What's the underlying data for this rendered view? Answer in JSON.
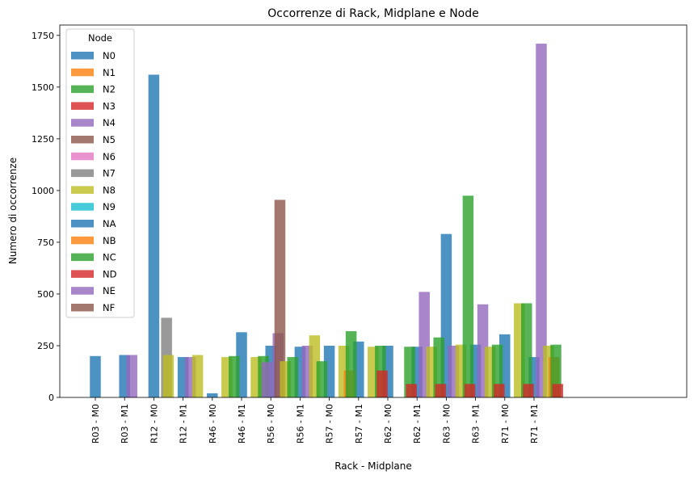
{
  "chart_data": {
    "type": "bar",
    "title": "Occorrenze di Rack, Midplane e Node",
    "xlabel": "Rack - Midplane",
    "ylabel": "Numero di occorrenze",
    "ylim": [
      0,
      1800
    ],
    "yticks": [
      0,
      250,
      500,
      750,
      1000,
      1250,
      1500,
      1750
    ],
    "grid": false,
    "legend": {
      "title": "Node",
      "position": "top-left"
    },
    "categories": [
      "R03 - M0",
      "R03 - M1",
      "R12 - M0",
      "R12 - M1",
      "R46 - M0",
      "R46 - M1",
      "R56 - M0",
      "R56 - M1",
      "R57 - M0",
      "R57 - M1",
      "R62 - M0",
      "R62 - M1",
      "R63 - M0",
      "R63 - M1",
      "R71 - M0",
      "R71 - M1"
    ],
    "series": [
      {
        "name": "N0",
        "color": "#1f77b4",
        "values": [
          200,
          205,
          1560,
          195,
          20,
          315,
          250,
          245,
          250,
          270,
          250,
          245,
          790,
          255,
          305,
          195
        ]
      },
      {
        "name": "N1",
        "color": "#ff7f0e",
        "values": [
          0,
          0,
          0,
          0,
          0,
          0,
          0,
          0,
          0,
          0,
          0,
          0,
          0,
          0,
          0,
          0
        ]
      },
      {
        "name": "N2",
        "color": "#2ca02c",
        "values": [
          0,
          0,
          0,
          0,
          0,
          0,
          0,
          0,
          0,
          0,
          0,
          0,
          0,
          0,
          0,
          0
        ]
      },
      {
        "name": "N3",
        "color": "#d62728",
        "values": [
          0,
          0,
          0,
          0,
          0,
          0,
          0,
          0,
          0,
          0,
          0,
          0,
          0,
          0,
          0,
          0
        ]
      },
      {
        "name": "N4",
        "color": "#9467bd",
        "values": [
          0,
          205,
          0,
          195,
          0,
          0,
          310,
          250,
          0,
          0,
          0,
          510,
          250,
          450,
          0,
          1710
        ]
      },
      {
        "name": "N5",
        "color": "#8c564b",
        "values": [
          0,
          0,
          0,
          0,
          0,
          0,
          955,
          0,
          0,
          0,
          0,
          0,
          0,
          0,
          0,
          0
        ]
      },
      {
        "name": "N6",
        "color": "#e377c2",
        "values": [
          0,
          0,
          0,
          0,
          0,
          0,
          0,
          0,
          0,
          0,
          0,
          0,
          0,
          0,
          0,
          0
        ]
      },
      {
        "name": "N7",
        "color": "#7f7f7f",
        "values": [
          0,
          0,
          385,
          0,
          0,
          0,
          0,
          0,
          0,
          0,
          0,
          0,
          0,
          0,
          0,
          0
        ]
      },
      {
        "name": "N8",
        "color": "#bcbd22",
        "values": [
          0,
          0,
          205,
          205,
          195,
          195,
          175,
          300,
          250,
          245,
          0,
          245,
          255,
          245,
          455,
          250
        ]
      },
      {
        "name": "N9",
        "color": "#17becf",
        "values": [
          0,
          0,
          0,
          0,
          0,
          0,
          0,
          0,
          0,
          0,
          0,
          0,
          0,
          0,
          0,
          0
        ]
      },
      {
        "name": "NA",
        "color": "#1f77b4",
        "values": [
          0,
          0,
          0,
          0,
          0,
          0,
          0,
          0,
          0,
          0,
          0,
          0,
          0,
          0,
          0,
          0
        ]
      },
      {
        "name": "NB",
        "color": "#ff7f0e",
        "values": [
          0,
          0,
          0,
          0,
          0,
          0,
          0,
          0,
          130,
          0,
          0,
          0,
          0,
          0,
          0,
          195
        ]
      },
      {
        "name": "NC",
        "color": "#2ca02c",
        "values": [
          0,
          0,
          0,
          0,
          200,
          200,
          195,
          175,
          320,
          250,
          245,
          290,
          975,
          255,
          455,
          255
        ]
      },
      {
        "name": "ND",
        "color": "#d62728",
        "values": [
          0,
          0,
          0,
          0,
          0,
          0,
          0,
          0,
          0,
          130,
          65,
          65,
          65,
          65,
          65,
          65
        ]
      },
      {
        "name": "NE",
        "color": "#9467bd",
        "values": [
          0,
          0,
          0,
          0,
          0,
          170,
          0,
          0,
          0,
          0,
          0,
          0,
          0,
          0,
          0,
          0
        ]
      },
      {
        "name": "NF",
        "color": "#8c564b",
        "values": [
          0,
          0,
          0,
          0,
          0,
          0,
          0,
          0,
          0,
          0,
          0,
          0,
          0,
          0,
          0,
          0
        ]
      }
    ]
  }
}
